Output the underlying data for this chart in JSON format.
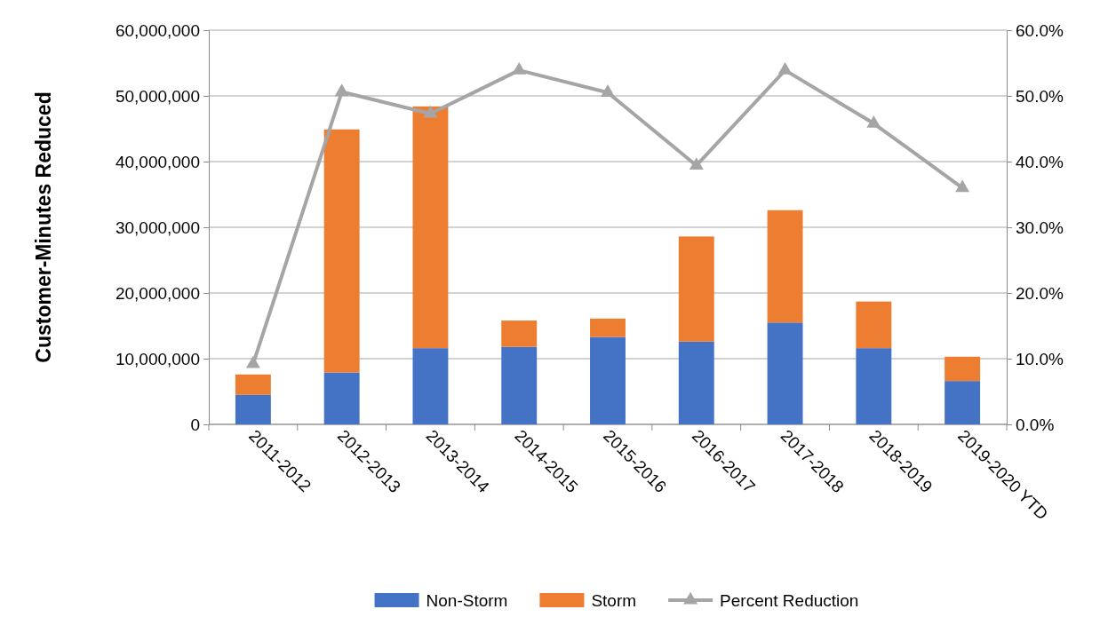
{
  "chart_data": {
    "type": "bar",
    "stacked": true,
    "ylabel": "Customer-Minutes Reduced",
    "categories": [
      "2011-2012",
      "2012-2013",
      "2013-2014",
      "2014-2015",
      "2015-2016",
      "2016-2017",
      "2017-2018",
      "2018-2019",
      "2019-2020 YTD"
    ],
    "series": [
      {
        "name": "Non-Storm",
        "color": "#4472c4",
        "values": [
          4500000,
          7900000,
          11600000,
          11800000,
          13300000,
          12600000,
          15500000,
          11600000,
          6600000
        ]
      },
      {
        "name": "Storm",
        "color": "#ed7d31",
        "values": [
          3100000,
          37000000,
          36800000,
          4000000,
          2800000,
          16000000,
          17100000,
          7100000,
          3700000
        ]
      },
      {
        "name": "Percent Reduction",
        "type": "line",
        "axis": "y2",
        "color": "#a5a5a5",
        "marker": "triangle",
        "values": [
          9.2,
          50.6,
          47.3,
          53.9,
          50.5,
          39.4,
          53.9,
          45.8,
          36.0
        ]
      }
    ],
    "ylim": [
      0,
      60000000
    ],
    "yticks": [
      {
        "value": 0,
        "label": "0"
      },
      {
        "value": 10000000,
        "label": "10,000,000"
      },
      {
        "value": 20000000,
        "label": "20,000,000"
      },
      {
        "value": 30000000,
        "label": "30,000,000"
      },
      {
        "value": 40000000,
        "label": "40,000,000"
      },
      {
        "value": 50000000,
        "label": "50,000,000"
      },
      {
        "value": 60000000,
        "label": "60,000,000"
      }
    ],
    "y2lim": [
      0,
      60
    ],
    "y2ticks": [
      {
        "value": 0,
        "label": "0.0%"
      },
      {
        "value": 10,
        "label": "10.0%"
      },
      {
        "value": 20,
        "label": "20.0%"
      },
      {
        "value": 30,
        "label": "30.0%"
      },
      {
        "value": 40,
        "label": "40.0%"
      },
      {
        "value": 50,
        "label": "50.0%"
      },
      {
        "value": 60,
        "label": "60.0%"
      }
    ],
    "grid": "y",
    "legend": "bottom"
  }
}
